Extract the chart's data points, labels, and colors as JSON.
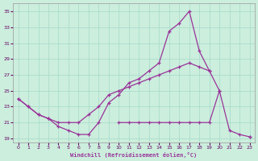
{
  "xlabel": "Windchill (Refroidissement éolien,°C)",
  "bg_color": "#cceedd",
  "line_color": "#993399",
  "grid_color": "#aaddcc",
  "xlim": [
    -0.5,
    23.5
  ],
  "ylim": [
    18.5,
    36.0
  ],
  "yticks": [
    19,
    21,
    23,
    25,
    27,
    29,
    31,
    33,
    35
  ],
  "xticks": [
    0,
    1,
    2,
    3,
    4,
    5,
    6,
    7,
    8,
    9,
    10,
    11,
    12,
    13,
    14,
    15,
    16,
    17,
    18,
    19,
    20,
    21,
    22,
    23
  ],
  "line1_x": [
    0,
    1,
    2,
    3,
    4,
    5,
    6,
    7,
    8,
    9,
    10,
    11,
    12,
    13,
    14,
    15,
    16,
    17,
    18,
    19,
    20,
    21,
    22,
    23
  ],
  "line1_y": [
    24.0,
    23.0,
    22.0,
    21.5,
    20.5,
    20.0,
    19.5,
    19.5,
    21.0,
    23.5,
    24.5,
    26.0,
    26.5,
    27.5,
    28.5,
    32.5,
    33.5,
    35.0,
    30.0,
    27.5,
    null,
    null,
    null,
    null
  ],
  "line2_x": [
    0,
    1,
    2,
    3,
    4,
    5,
    6,
    7,
    8,
    9,
    10,
    11,
    12,
    13,
    14,
    15,
    16,
    17,
    18,
    19,
    20,
    21,
    22,
    23
  ],
  "line2_y": [
    24.0,
    23.0,
    22.0,
    21.5,
    21.0,
    21.0,
    21.0,
    22.0,
    23.0,
    24.5,
    25.0,
    25.5,
    26.0,
    26.5,
    27.0,
    27.5,
    28.0,
    28.5,
    28.0,
    27.5,
    25.0,
    null,
    null,
    19.2
  ],
  "line3_x": [
    0,
    1,
    2,
    3,
    4,
    5,
    6,
    7,
    8,
    9,
    10,
    11,
    12,
    13,
    14,
    15,
    16,
    17,
    18,
    19,
    20,
    21,
    22,
    23
  ],
  "line3_y": [
    null,
    null,
    null,
    null,
    null,
    null,
    null,
    null,
    null,
    null,
    21.0,
    21.0,
    21.0,
    21.0,
    21.0,
    21.0,
    21.0,
    21.0,
    21.0,
    21.0,
    25.0,
    20.0,
    19.5,
    19.2
  ]
}
